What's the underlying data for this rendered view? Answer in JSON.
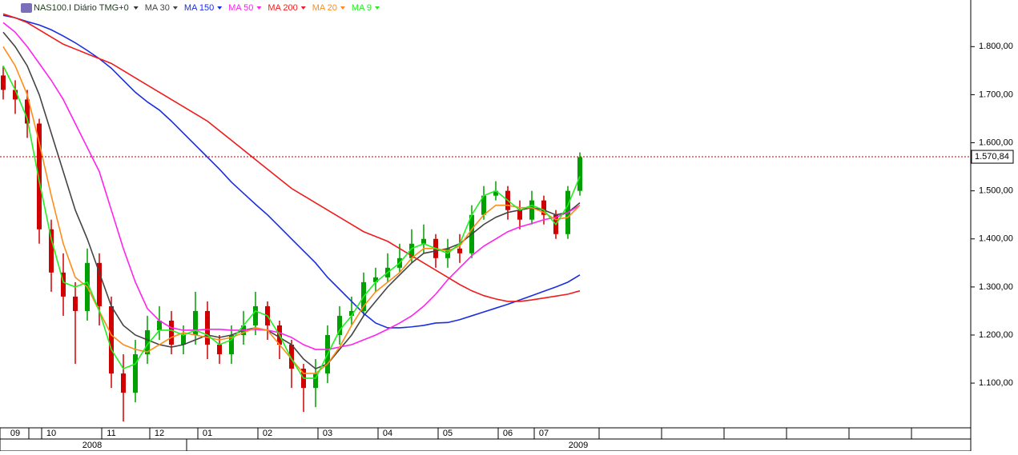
{
  "chart_data": {
    "type": "candlestick",
    "title": "NAS100.I Diário TMG+0",
    "categories": [
      null,
      "09",
      null,
      null,
      "10",
      null,
      null,
      null,
      null,
      "11",
      null,
      null,
      null,
      "12",
      null,
      null,
      null,
      "01",
      null,
      null,
      null,
      null,
      "02",
      null,
      null,
      null,
      null,
      "03",
      null,
      null,
      null,
      null,
      "04",
      null,
      null,
      null,
      null,
      "05",
      null,
      null,
      null,
      null,
      "06",
      null,
      null,
      "07",
      null,
      null,
      null
    ],
    "years": [
      "2008",
      "2009"
    ],
    "open": [
      1740,
      1710,
      1690,
      1640,
      1420,
      1330,
      1280,
      1250,
      1350,
      1260,
      1120,
      1080,
      1160,
      1210,
      1230,
      1180,
      1200,
      1250,
      1180,
      1160,
      1200,
      1220,
      1260,
      1220,
      1180,
      1130,
      1090,
      1120,
      1200,
      1240,
      1250,
      1310,
      1320,
      1340,
      1360,
      1390,
      1400,
      1360,
      1380,
      1370,
      1450,
      1490,
      1500,
      1460,
      1440,
      1480,
      1450,
      1410,
      1500
    ],
    "high": [
      1760,
      1730,
      1710,
      1650,
      1440,
      1370,
      1310,
      1380,
      1370,
      1280,
      1160,
      1190,
      1240,
      1260,
      1250,
      1220,
      1290,
      1270,
      1200,
      1220,
      1250,
      1290,
      1270,
      1230,
      1190,
      1140,
      1150,
      1220,
      1260,
      1280,
      1330,
      1340,
      1370,
      1390,
      1420,
      1430,
      1410,
      1400,
      1410,
      1470,
      1510,
      1520,
      1510,
      1480,
      1500,
      1490,
      1460,
      1510,
      1580
    ],
    "low": [
      1690,
      1660,
      1610,
      1390,
      1290,
      1240,
      1140,
      1230,
      1220,
      1090,
      1020,
      1060,
      1140,
      1190,
      1160,
      1160,
      1180,
      1150,
      1140,
      1140,
      1180,
      1200,
      1190,
      1150,
      1090,
      1040,
      1050,
      1100,
      1180,
      1220,
      1240,
      1290,
      1310,
      1330,
      1350,
      1370,
      1340,
      1340,
      1350,
      1360,
      1440,
      1480,
      1440,
      1420,
      1430,
      1430,
      1400,
      1400,
      1490
    ],
    "close": [
      1710,
      1690,
      1640,
      1420,
      1330,
      1280,
      1250,
      1350,
      1260,
      1120,
      1080,
      1160,
      1210,
      1230,
      1180,
      1200,
      1250,
      1180,
      1160,
      1200,
      1220,
      1260,
      1220,
      1180,
      1130,
      1090,
      1120,
      1200,
      1240,
      1250,
      1310,
      1320,
      1340,
      1360,
      1390,
      1400,
      1360,
      1380,
      1370,
      1450,
      1490,
      1500,
      1460,
      1440,
      1480,
      1450,
      1410,
      1500,
      1570
    ],
    "up_color": "#00a000",
    "down_color": "#d00000",
    "series": [
      {
        "name": "MA 30",
        "color": "#444444",
        "values": [
          1830,
          1800,
          1760,
          1700,
          1620,
          1540,
          1460,
          1400,
          1330,
          1260,
          1220,
          1200,
          1190,
          1180,
          1175,
          1180,
          1190,
          1200,
          1195,
          1200,
          1210,
          1215,
          1210,
          1195,
          1180,
          1150,
          1130,
          1140,
          1170,
          1200,
          1240,
          1270,
          1300,
          1325,
          1350,
          1370,
          1375,
          1380,
          1390,
          1410,
          1430,
          1445,
          1455,
          1460,
          1465,
          1460,
          1450,
          1455,
          1475
        ]
      },
      {
        "name": "MA 150",
        "color": "#1a2ee0",
        "values": [
          1865,
          1860,
          1852,
          1845,
          1835,
          1822,
          1808,
          1792,
          1775,
          1755,
          1730,
          1705,
          1685,
          1668,
          1645,
          1620,
          1595,
          1570,
          1545,
          1518,
          1495,
          1472,
          1450,
          1425,
          1400,
          1375,
          1350,
          1320,
          1295,
          1270,
          1245,
          1225,
          1215,
          1215,
          1217,
          1220,
          1225,
          1226,
          1232,
          1240,
          1248,
          1256,
          1264,
          1273,
          1282,
          1291,
          1300,
          1310,
          1325
        ]
      },
      {
        "name": "MA 50",
        "color": "#ff22ee",
        "values": [
          1850,
          1830,
          1800,
          1765,
          1730,
          1690,
          1640,
          1590,
          1540,
          1460,
          1380,
          1310,
          1255,
          1230,
          1215,
          1210,
          1210,
          1212,
          1212,
          1210,
          1210,
          1212,
          1210,
          1205,
          1195,
          1180,
          1170,
          1170,
          1175,
          1180,
          1190,
          1200,
          1212,
          1225,
          1240,
          1260,
          1285,
          1315,
          1340,
          1365,
          1385,
          1400,
          1415,
          1425,
          1432,
          1440,
          1445,
          1455,
          1470
        ]
      },
      {
        "name": "MA 200",
        "color": "#ee1c1c",
        "values": [
          1868,
          1860,
          1850,
          1835,
          1820,
          1805,
          1795,
          1785,
          1775,
          1765,
          1750,
          1735,
          1720,
          1705,
          1690,
          1675,
          1660,
          1645,
          1625,
          1605,
          1585,
          1565,
          1545,
          1525,
          1505,
          1490,
          1475,
          1460,
          1445,
          1430,
          1415,
          1405,
          1395,
          1380,
          1365,
          1350,
          1335,
          1320,
          1305,
          1292,
          1282,
          1275,
          1270,
          1270,
          1273,
          1277,
          1281,
          1285,
          1292
        ]
      },
      {
        "name": "MA 20",
        "color": "#ff8c1a",
        "values": [
          1800,
          1760,
          1700,
          1600,
          1490,
          1390,
          1320,
          1300,
          1250,
          1200,
          1180,
          1170,
          1165,
          1180,
          1195,
          1205,
          1200,
          1195,
          1190,
          1195,
          1205,
          1215,
          1210,
          1180,
          1150,
          1120,
          1120,
          1140,
          1175,
          1220,
          1260,
          1290,
          1310,
          1330,
          1360,
          1380,
          1380,
          1375,
          1385,
          1420,
          1450,
          1470,
          1470,
          1465,
          1465,
          1455,
          1440,
          1445,
          1470
        ]
      },
      {
        "name": "MA 9",
        "color": "#22ee22",
        "values": [
          1760,
          1710,
          1650,
          1520,
          1400,
          1310,
          1300,
          1310,
          1250,
          1170,
          1130,
          1140,
          1180,
          1210,
          1210,
          1200,
          1210,
          1200,
          1180,
          1190,
          1220,
          1250,
          1240,
          1200,
          1150,
          1110,
          1110,
          1160,
          1210,
          1240,
          1280,
          1310,
          1330,
          1350,
          1380,
          1390,
          1380,
          1370,
          1390,
          1450,
          1490,
          1500,
          1480,
          1460,
          1470,
          1460,
          1430,
          1470,
          1530
        ]
      }
    ],
    "last_price": {
      "value": 1570.84,
      "label": "1.570,84"
    },
    "last_price_color": "#c00000",
    "ylim": [
      1007,
      1897
    ],
    "yticks": [
      {
        "value": 1100,
        "label": "1.100,00"
      },
      {
        "value": 1200,
        "label": "1.200,00"
      },
      {
        "value": 1300,
        "label": "1.300,00"
      },
      {
        "value": 1400,
        "label": "1.400,00"
      },
      {
        "value": 1500,
        "label": "1.500,00"
      },
      {
        "value": 1600,
        "label": "1.600,00"
      },
      {
        "value": 1700,
        "label": "1.700,00"
      },
      {
        "value": 1800,
        "label": "1.800,00"
      }
    ]
  }
}
